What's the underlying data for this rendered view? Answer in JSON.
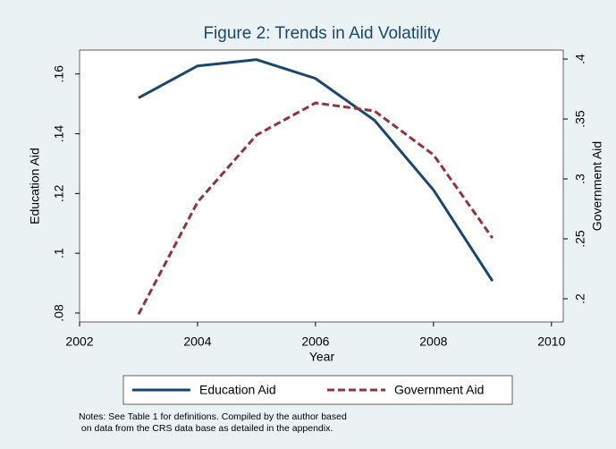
{
  "chart_data": {
    "type": "line",
    "title": "Figure 2: Trends in Aid Volatility",
    "x_label": "Year",
    "y_label": "Education Aid",
    "y2_label": "Government Aid",
    "x": [
      2003,
      2004,
      2005,
      2006,
      2007,
      2008,
      2009
    ],
    "series": [
      {
        "name": "Education Aid",
        "color": "#1a476f",
        "values": [
          0.152,
          0.1627,
          0.1648,
          0.1585,
          0.1445,
          0.1212,
          0.0907
        ]
      },
      {
        "name": "Government Aid",
        "color": "#90353b",
        "axis": "y2",
        "dashed": true,
        "values": [
          0.187,
          0.2806,
          0.3366,
          0.3634,
          0.3567,
          0.3201,
          0.2507
        ]
      }
    ],
    "xlim": [
      2002,
      2010.2
    ],
    "xticks": [
      2002,
      2004,
      2006,
      2008,
      2010
    ],
    "ylim": [
      0.077,
      0.168
    ],
    "yticks": [
      {
        "value": 0.08,
        "label": ".08"
      },
      {
        "value": 0.1,
        "label": ".1"
      },
      {
        "value": 0.12,
        "label": ".12"
      },
      {
        "value": 0.14,
        "label": ".14"
      },
      {
        "value": 0.16,
        "label": ".16"
      }
    ],
    "y2lim": [
      0.1806,
      0.4075
    ],
    "y2ticks": [
      {
        "value": 0.2,
        "label": ".2"
      },
      {
        "value": 0.25,
        "label": ".25"
      },
      {
        "value": 0.3,
        "label": ".3"
      },
      {
        "value": 0.35,
        "label": ".35"
      },
      {
        "value": 0.4,
        "label": ".4"
      }
    ],
    "legend": "bottom",
    "notes": [
      "Notes: See Table 1 for definitions. Compiled by the author based",
      " on data from the CRS data base as detailed in the appendix."
    ]
  }
}
